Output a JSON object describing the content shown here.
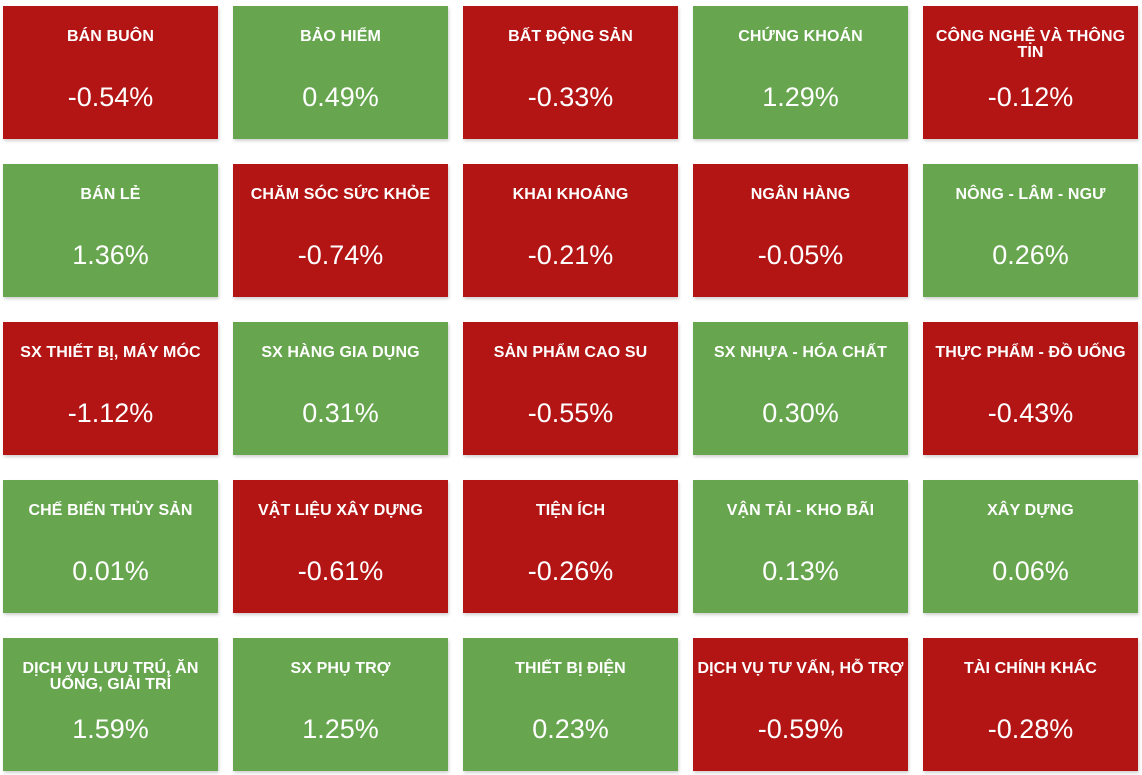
{
  "colors": {
    "negative": "#b31515",
    "positive": "#67a64f",
    "text": "#ffffff"
  },
  "sectors": [
    {
      "name": "BÁN BUÔN",
      "change": "-0.54%",
      "direction": "down"
    },
    {
      "name": "BẢO HIỂM",
      "change": "0.49%",
      "direction": "up"
    },
    {
      "name": "BẤT ĐỘNG SẢN",
      "change": "-0.33%",
      "direction": "down"
    },
    {
      "name": "CHỨNG KHOÁN",
      "change": "1.29%",
      "direction": "up"
    },
    {
      "name": "CÔNG NGHỆ VÀ THÔNG TIN",
      "change": "-0.12%",
      "direction": "down"
    },
    {
      "name": "BÁN LẺ",
      "change": "1.36%",
      "direction": "up"
    },
    {
      "name": "CHĂM SÓC SỨC KHỎE",
      "change": "-0.74%",
      "direction": "down"
    },
    {
      "name": "KHAI KHOÁNG",
      "change": "-0.21%",
      "direction": "down"
    },
    {
      "name": "NGÂN HÀNG",
      "change": "-0.05%",
      "direction": "down"
    },
    {
      "name": "NÔNG - LÂM - NGƯ",
      "change": "0.26%",
      "direction": "up"
    },
    {
      "name": "SX THIẾT BỊ, MÁY MÓC",
      "change": "-1.12%",
      "direction": "down"
    },
    {
      "name": "SX HÀNG GIA DỤNG",
      "change": "0.31%",
      "direction": "up"
    },
    {
      "name": "SẢN PHẨM CAO SU",
      "change": "-0.55%",
      "direction": "down"
    },
    {
      "name": "SX NHỰA - HÓA CHẤT",
      "change": "0.30%",
      "direction": "up"
    },
    {
      "name": "THỰC PHẨM - ĐỒ UỐNG",
      "change": "-0.43%",
      "direction": "down"
    },
    {
      "name": "CHẾ BIẾN THỦY SẢN",
      "change": "0.01%",
      "direction": "up"
    },
    {
      "name": "VẬT LIỆU XÂY DỰNG",
      "change": "-0.61%",
      "direction": "down"
    },
    {
      "name": "TIỆN ÍCH",
      "change": "-0.26%",
      "direction": "down"
    },
    {
      "name": "VẬN TẢI - KHO BÃI",
      "change": "0.13%",
      "direction": "up"
    },
    {
      "name": "XÂY DỰNG",
      "change": "0.06%",
      "direction": "up"
    },
    {
      "name": "DỊCH VỤ LƯU TRÚ, ĂN UỐNG, GIẢI TRÍ",
      "change": "1.59%",
      "direction": "up"
    },
    {
      "name": "SX PHỤ TRỢ",
      "change": "1.25%",
      "direction": "up"
    },
    {
      "name": "THIẾT BỊ ĐIỆN",
      "change": "0.23%",
      "direction": "up"
    },
    {
      "name": "DỊCH VỤ TƯ VẤN, HỖ TRỢ",
      "change": "-0.59%",
      "direction": "down"
    },
    {
      "name": "TÀI CHÍNH KHÁC",
      "change": "-0.28%",
      "direction": "down"
    }
  ]
}
